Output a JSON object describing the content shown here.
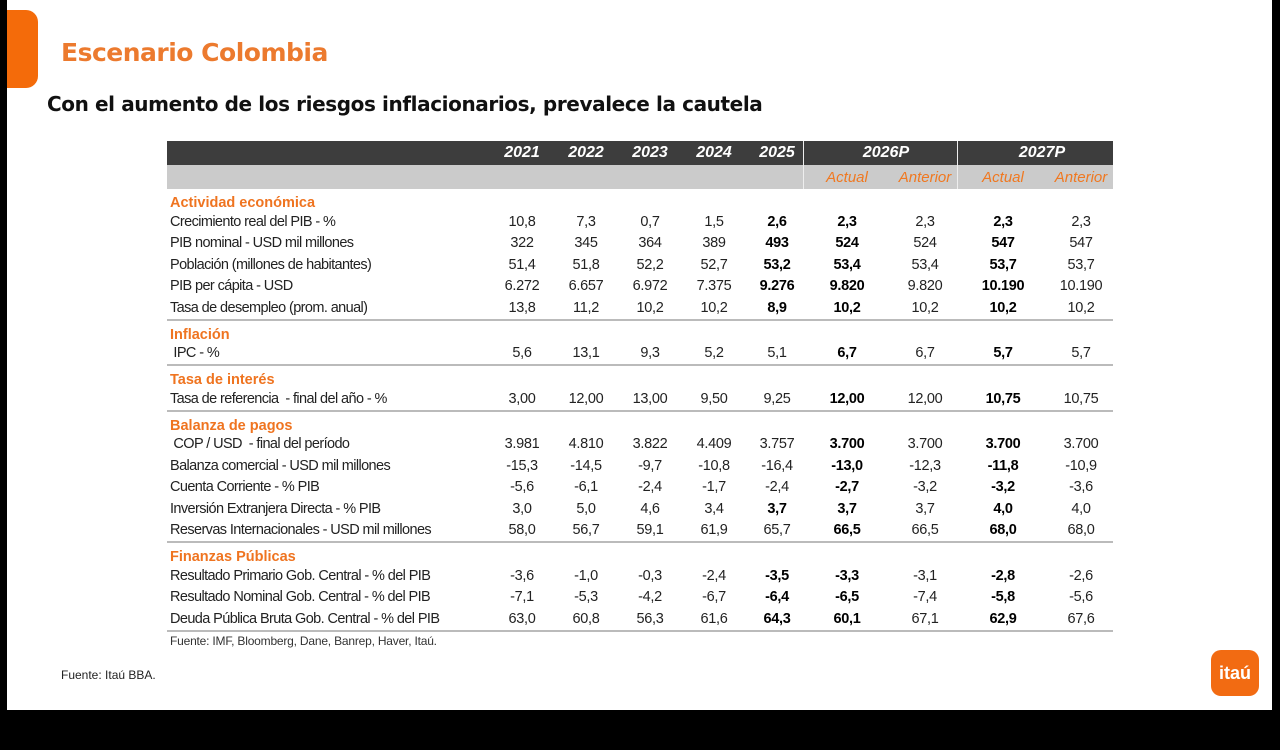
{
  "slide": {
    "title": "Escenario Colombia",
    "subtitle": "Con el aumento de los riesgos inflacionarios, prevalece la cautela",
    "footer_source": "Fuente: Itaú BBA.",
    "logo_text": "itaú",
    "accent_color": "#f26b12"
  },
  "table": {
    "year_headers": [
      "2021",
      "2022",
      "2023",
      "2024",
      "2025"
    ],
    "projection_headers": [
      "2026P",
      "2027P"
    ],
    "sub_headers": [
      "Actual",
      "Anterior",
      "Actual",
      "Anterior"
    ],
    "sections": [
      {
        "title": "Actividad económica",
        "rows": [
          {
            "label": "Crecimiento real del PIB - %",
            "values": [
              "10,8",
              "7,3",
              "0,7",
              "1,5",
              "2,6",
              "2,3",
              "2,3",
              "2,3",
              "2,3"
            ],
            "bold": [
              4,
              5,
              7
            ]
          },
          {
            "label": "PIB nominal - USD mil millones",
            "values": [
              "322",
              "345",
              "364",
              "389",
              "493",
              "524",
              "524",
              "547",
              "547"
            ],
            "bold": [
              4,
              5,
              7
            ]
          },
          {
            "label": "Población (millones de habitantes)",
            "values": [
              "51,4",
              "51,8",
              "52,2",
              "52,7",
              "53,2",
              "53,4",
              "53,4",
              "53,7",
              "53,7"
            ],
            "bold": [
              4,
              5,
              7
            ]
          },
          {
            "label": "PIB per cápita - USD",
            "values": [
              "6.272",
              "6.657",
              "6.972",
              "7.375",
              "9.276",
              "9.820",
              "9.820",
              "10.190",
              "10.190"
            ],
            "bold": [
              4,
              5,
              7
            ]
          },
          {
            "label": "Tasa de desempleo (prom. anual)",
            "values": [
              "13,8",
              "11,2",
              "10,2",
              "10,2",
              "8,9",
              "10,2",
              "10,2",
              "10,2",
              "10,2"
            ],
            "bold": [
              4,
              5,
              7
            ]
          }
        ]
      },
      {
        "title": "Inflación",
        "rows": [
          {
            "label": " IPC - %",
            "values": [
              "5,6",
              "13,1",
              "9,3",
              "5,2",
              "5,1",
              "6,7",
              "6,7",
              "5,7",
              "5,7"
            ],
            "bold": [
              5,
              7
            ]
          }
        ]
      },
      {
        "title": "Tasa de interés",
        "rows": [
          {
            "label": "Tasa de referencia  - final del año - %",
            "values": [
              "3,00",
              "12,00",
              "13,00",
              "9,50",
              "9,25",
              "12,00",
              "12,00",
              "10,75",
              "10,75"
            ],
            "bold": [
              5,
              7
            ]
          }
        ]
      },
      {
        "title": "Balanza de pagos",
        "rows": [
          {
            "label": " COP / USD  - final del período",
            "values": [
              "3.981",
              "4.810",
              "3.822",
              "4.409",
              "3.757",
              "3.700",
              "3.700",
              "3.700",
              "3.700"
            ],
            "bold": [
              5,
              7
            ]
          },
          {
            "label": "Balanza comercial - USD mil millones",
            "values": [
              "-15,3",
              "-14,5",
              "-9,7",
              "-10,8",
              "-16,4",
              "-13,0",
              "-12,3",
              "-11,8",
              "-10,9"
            ],
            "bold": [
              5,
              7
            ]
          },
          {
            "label": "Cuenta Corriente - % PIB",
            "values": [
              "-5,6",
              "-6,1",
              "-2,4",
              "-1,7",
              "-2,4",
              "-2,7",
              "-3,2",
              "-3,2",
              "-3,6"
            ],
            "bold": [
              5,
              7
            ]
          },
          {
            "label": "Inversión Extranjera Directa - % PIB",
            "values": [
              "3,0",
              "5,0",
              "4,6",
              "3,4",
              "3,7",
              "3,7",
              "3,7",
              "4,0",
              "4,0"
            ],
            "bold": [
              4,
              5,
              7
            ]
          },
          {
            "label": "Reservas Internacionales - USD mil millones",
            "values": [
              "58,0",
              "56,7",
              "59,1",
              "61,9",
              "65,7",
              "66,5",
              "66,5",
              "68,0",
              "68,0"
            ],
            "bold": [
              5,
              7
            ]
          }
        ]
      },
      {
        "title": "Finanzas Públicas",
        "rows": [
          {
            "label": "Resultado Primario Gob. Central - % del PIB",
            "values": [
              "-3,6",
              "-1,0",
              "-0,3",
              "-2,4",
              "-3,5",
              "-3,3",
              "-3,1",
              "-2,8",
              "-2,6"
            ],
            "bold": [
              4,
              5,
              7
            ]
          },
          {
            "label": "Resultado Nominal Gob. Central - % del PIB",
            "values": [
              "-7,1",
              "-5,3",
              "-4,2",
              "-6,7",
              "-6,4",
              "-6,5",
              "-7,4",
              "-5,8",
              "-5,6"
            ],
            "bold": [
              4,
              5,
              7
            ]
          },
          {
            "label": "Deuda Pública Bruta Gob. Central - % del PIB",
            "values": [
              "63,0",
              "60,8",
              "56,3",
              "61,6",
              "64,3",
              "60,1",
              "67,1",
              "62,9",
              "67,6"
            ],
            "bold": [
              4,
              5,
              7
            ]
          }
        ]
      }
    ],
    "note": "Fuente: IMF, Bloomberg, Dane, Banrep, Haver, Itaú."
  }
}
